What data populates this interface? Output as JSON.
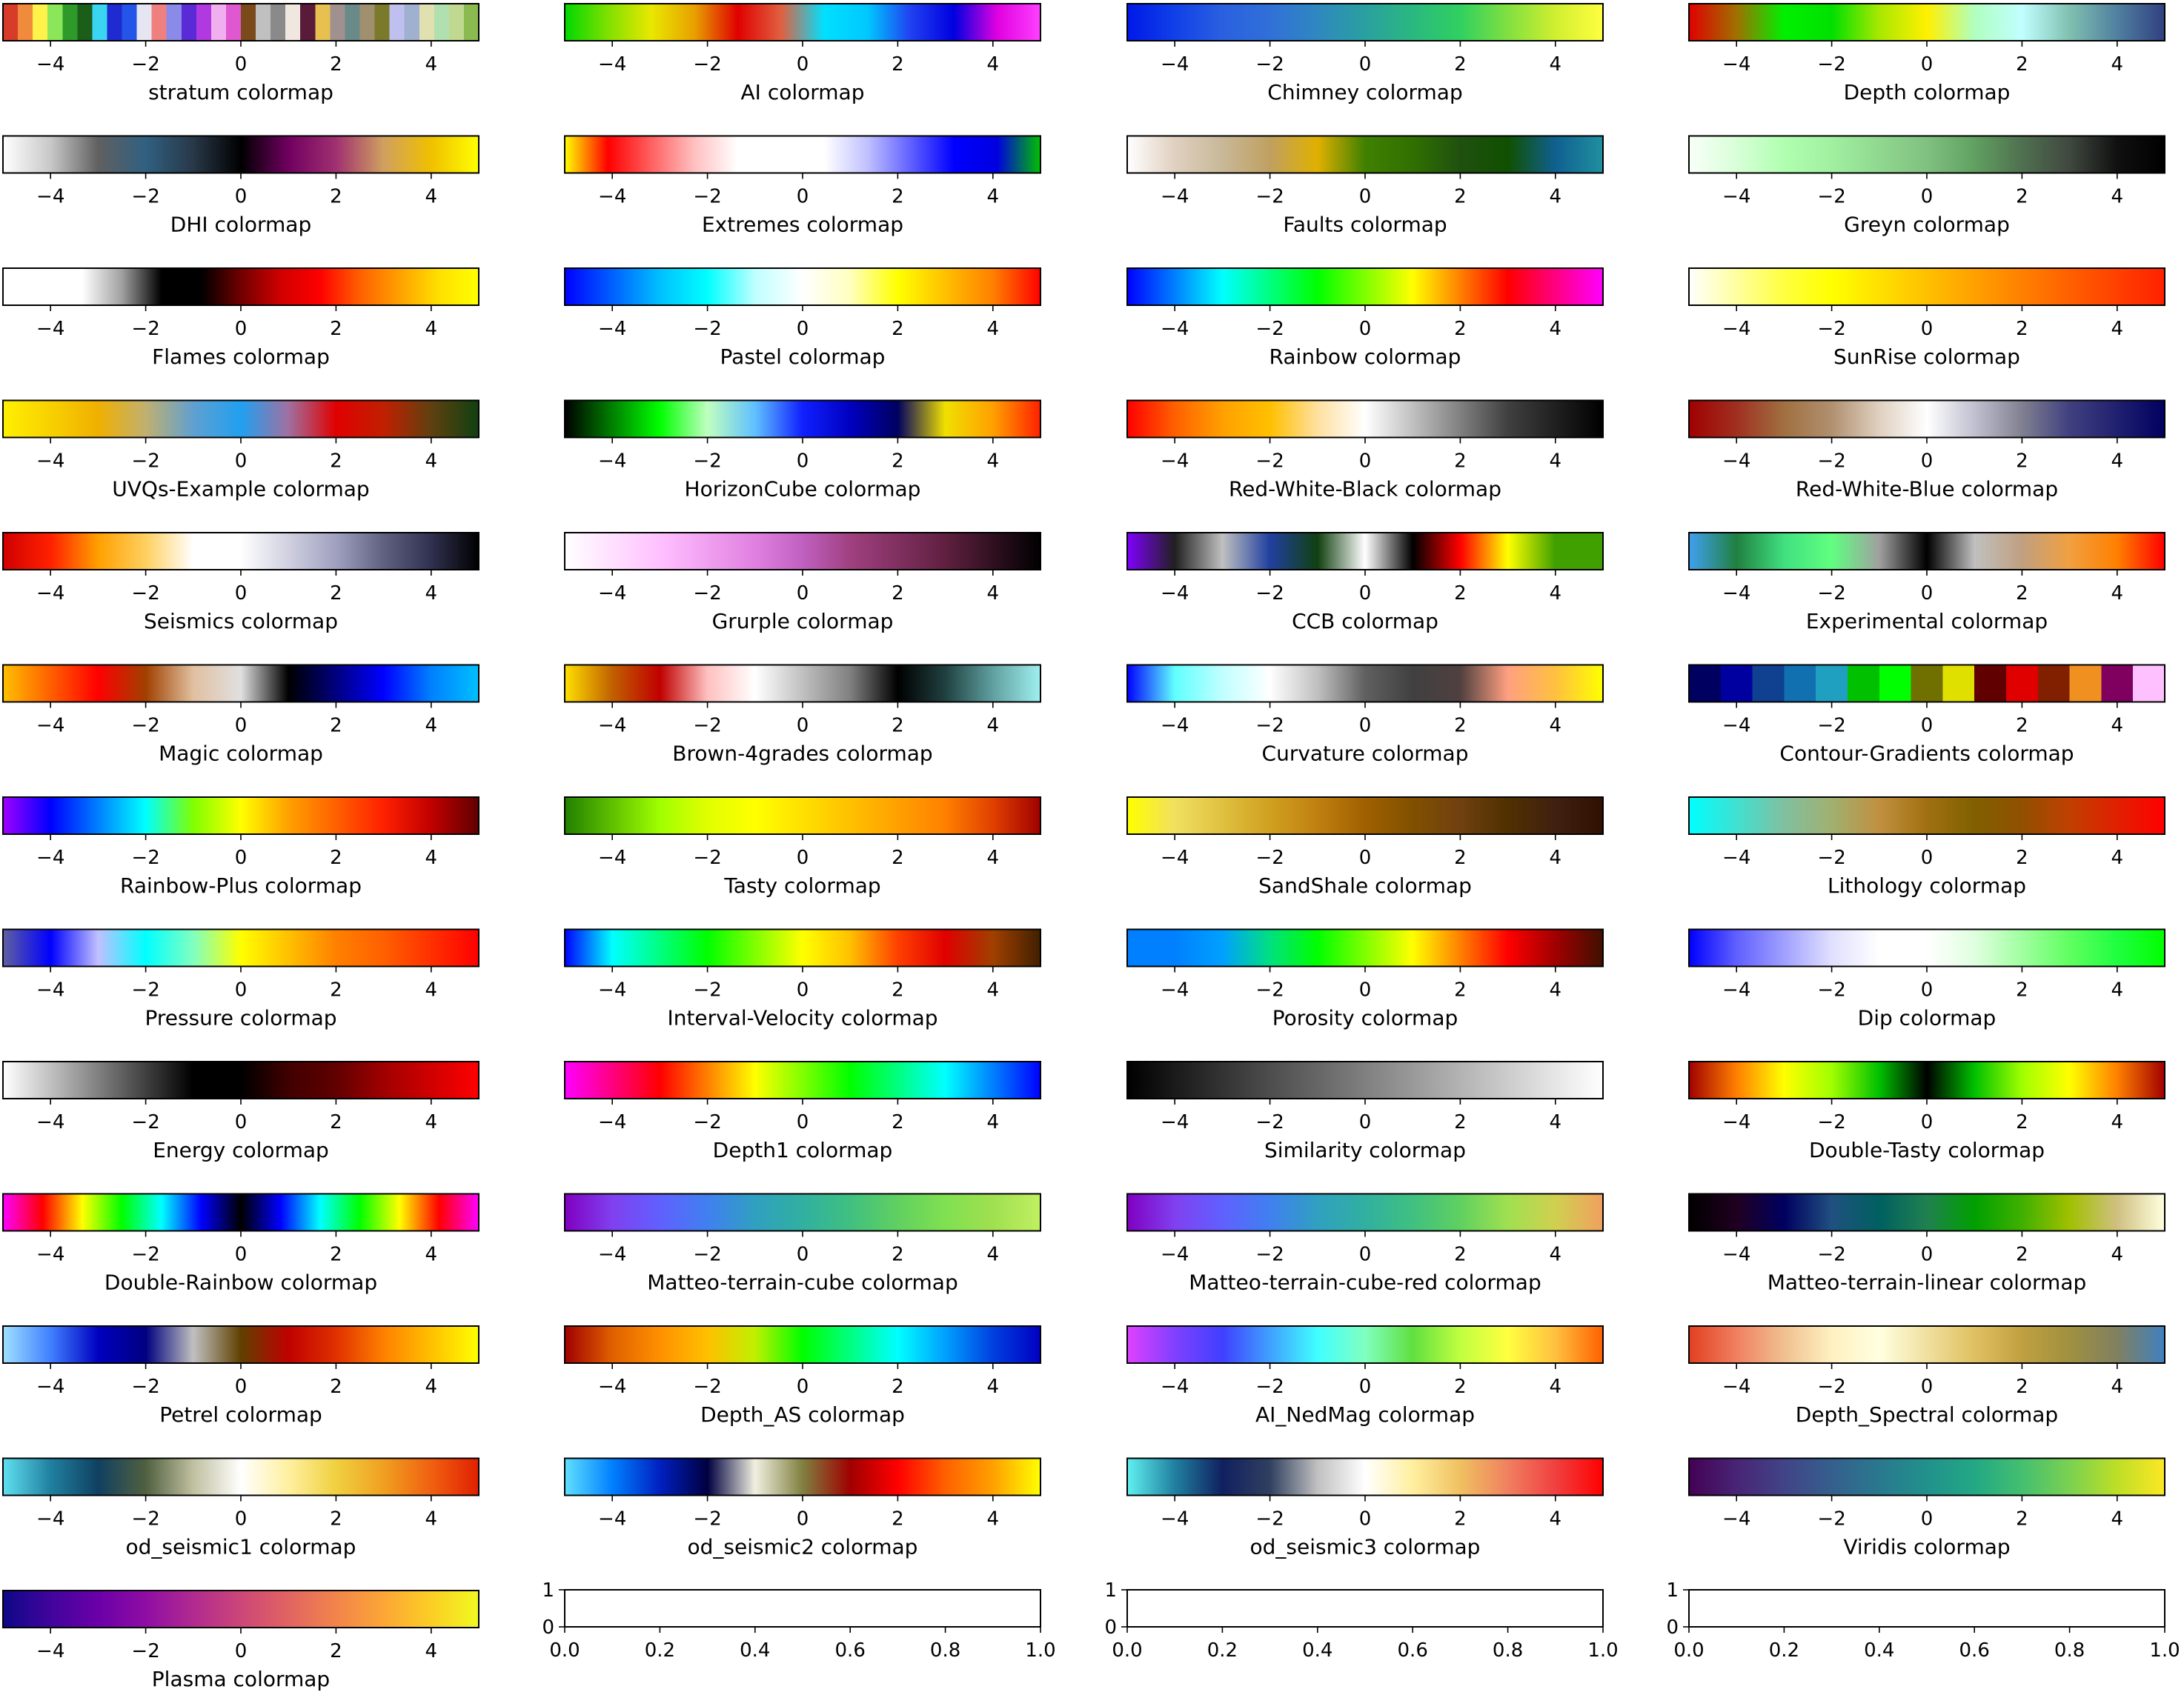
{
  "figure": {
    "tick_values": [
      -4,
      -2,
      0,
      2,
      4
    ],
    "empty_x_ticks": [
      "0.0",
      "0.2",
      "0.4",
      "0.6",
      "0.8",
      "1.0"
    ],
    "empty_y_ticks": [
      "0",
      "1"
    ]
  },
  "chart_data": [
    {
      "type": "heatmap",
      "title": "stratum colormap",
      "xlim": [
        -5,
        5
      ],
      "discrete": true,
      "colors": [
        "#d73b2a",
        "#f08a3c",
        "#fff24a",
        "#8ce65a",
        "#2d9a2a",
        "#1d5d1a",
        "#3ad5f0",
        "#1f2bd0",
        "#2454e8",
        "#e6e6f2",
        "#f08080",
        "#8a8ae8",
        "#5a2ad6",
        "#b03ae0",
        "#f0b0f0",
        "#e058d0",
        "#7a4a1a",
        "#c0c0c0",
        "#8a8a8a",
        "#f0e8e0",
        "#5a1a3a",
        "#e8c050",
        "#a09090",
        "#6a8a8a",
        "#a09070",
        "#7a7a2a",
        "#c0c0f0",
        "#a0b0d0",
        "#e0e0b0",
        "#b0e0b0",
        "#c0d890",
        "#8aba50"
      ]
    },
    {
      "type": "heatmap",
      "title": "AI colormap",
      "xlim": [
        -5,
        5
      ],
      "colors": [
        "#00d800",
        "#80e000",
        "#e8e800",
        "#e8a000",
        "#e00000",
        "#e06040",
        "#00e0ff",
        "#00c8ff",
        "#2040f0",
        "#0000e0",
        "#e000e0",
        "#ff40ff"
      ]
    },
    {
      "type": "heatmap",
      "title": "Chimney colormap",
      "xlim": [
        -5,
        5
      ],
      "colors": [
        "#0018e8",
        "#1040e8",
        "#2a60e0",
        "#3070d8",
        "#2f88c0",
        "#2aa0a0",
        "#2ab880",
        "#30d060",
        "#80e040",
        "#d0ef30",
        "#ffff40"
      ]
    },
    {
      "type": "heatmap",
      "title": "Depth colormap",
      "xlim": [
        -5,
        5
      ],
      "colors": [
        "#e00000",
        "#a07000",
        "#00f000",
        "#00e000",
        "#a8e800",
        "#fff000",
        "#b0ffc0",
        "#c0ffff",
        "#80c0b0",
        "#5080a0",
        "#304080"
      ]
    },
    {
      "type": "heatmap",
      "title": "DHI colormap",
      "xlim": [
        -5,
        5
      ],
      "colors": [
        "#ffffff",
        "#c8c8c8",
        "#606060",
        "#306080",
        "#283848",
        "#000000",
        "#700060",
        "#a03070",
        "#d0a060",
        "#f0c000",
        "#ffff00"
      ]
    },
    {
      "type": "heatmap",
      "title": "Extremes colormap",
      "xlim": [
        -5,
        5
      ],
      "colors": [
        "#ffff00",
        "#ff0000",
        "#ff6060",
        "#ffc0c0",
        "#ffffff",
        "#ffffff",
        "#ffffff",
        "#c0c0ff",
        "#6060ff",
        "#0000ff",
        "#0000e0",
        "#00c000"
      ]
    },
    {
      "type": "heatmap",
      "title": "Faults colormap",
      "xlim": [
        -5,
        5
      ],
      "colors": [
        "#ffffff",
        "#e0d0c0",
        "#c8b898",
        "#c0a060",
        "#e0b000",
        "#408000",
        "#307000",
        "#205010",
        "#105000",
        "#106090",
        "#2090a0"
      ]
    },
    {
      "type": "heatmap",
      "title": "Greyn colormap",
      "xlim": [
        -5,
        5
      ],
      "colors": [
        "#f8fff8",
        "#d8ffd8",
        "#b0ffb0",
        "#a0f0a0",
        "#90d890",
        "#80c080",
        "#60a060",
        "#507050",
        "#404840",
        "#101010",
        "#000000"
      ]
    },
    {
      "type": "heatmap",
      "title": "Flames colormap",
      "xlim": [
        -5,
        5
      ],
      "colors": [
        "#ffffff",
        "#ffffff",
        "#ffffff",
        "#a0a0a0",
        "#000000",
        "#000000",
        "#700000",
        "#d00000",
        "#ff0000",
        "#ff6000",
        "#ffa000",
        "#ffe000",
        "#ffff00"
      ]
    },
    {
      "type": "heatmap",
      "title": "Pastel colormap",
      "xlim": [
        -5,
        5
      ],
      "colors": [
        "#0000ff",
        "#0060ff",
        "#00c0ff",
        "#00ffff",
        "#c0ffff",
        "#ffffff",
        "#ffffc0",
        "#ffff00",
        "#ffc000",
        "#ff8000",
        "#ff0000"
      ]
    },
    {
      "type": "heatmap",
      "title": "Rainbow colormap",
      "xlim": [
        -5,
        5
      ],
      "colors": [
        "#0000ff",
        "#0080ff",
        "#00ffff",
        "#00ff80",
        "#00ff00",
        "#80ff00",
        "#ffff00",
        "#ff8000",
        "#ff0000",
        "#ff0080",
        "#ff00ff"
      ]
    },
    {
      "type": "heatmap",
      "title": "SunRise colormap",
      "xlim": [
        -5,
        5
      ],
      "colors": [
        "#ffffff",
        "#ffffa0",
        "#ffff40",
        "#ffff00",
        "#ffe000",
        "#ffc000",
        "#ffa000",
        "#ff8000",
        "#ff6000",
        "#ff4000",
        "#ff2000"
      ]
    },
    {
      "type": "heatmap",
      "title": "UVQs-Example colormap",
      "xlim": [
        -5,
        5
      ],
      "colors": [
        "#fff000",
        "#f8d000",
        "#f0b000",
        "#c0b070",
        "#60a0d0",
        "#20a0f0",
        "#a070a0",
        "#e00000",
        "#c02000",
        "#604010",
        "#104010"
      ]
    },
    {
      "type": "heatmap",
      "title": "HorizonCube colormap",
      "xlim": [
        -5,
        5
      ],
      "colors": [
        "#000000",
        "#008000",
        "#00ff00",
        "#c0ffc0",
        "#60c0ff",
        "#1020ff",
        "#0000c0",
        "#000060",
        "#f0e000",
        "#ffa000",
        "#ff2000"
      ]
    },
    {
      "type": "heatmap",
      "title": "Red-White-Black colormap",
      "xlim": [
        -5,
        5
      ],
      "colors": [
        "#ff0000",
        "#ff6000",
        "#ffa000",
        "#ffc000",
        "#ffe0a0",
        "#ffffff",
        "#c0c0c0",
        "#808080",
        "#404040",
        "#202020",
        "#000000"
      ]
    },
    {
      "type": "heatmap",
      "title": "Red-White-Blue colormap",
      "xlim": [
        -5,
        5
      ],
      "colors": [
        "#a00000",
        "#a03020",
        "#a07040",
        "#b09070",
        "#e0d0c0",
        "#ffffff",
        "#c0c0d0",
        "#808090",
        "#404080",
        "#202070",
        "#000060"
      ]
    },
    {
      "type": "heatmap",
      "title": "Seismics colormap",
      "xlim": [
        -5,
        5
      ],
      "colors": [
        "#d00000",
        "#ff2000",
        "#ffa000",
        "#ffd060",
        "#ffffff",
        "#ffffff",
        "#d0d0e0",
        "#a0a0c0",
        "#606080",
        "#303050",
        "#000000"
      ]
    },
    {
      "type": "heatmap",
      "title": "Grurple colormap",
      "xlim": [
        -5,
        5
      ],
      "colors": [
        "#ffffff",
        "#ffe0ff",
        "#ffc0ff",
        "#f0a0f0",
        "#e080e0",
        "#c060c0",
        "#a04080",
        "#803060",
        "#602040",
        "#301020",
        "#000000"
      ]
    },
    {
      "type": "heatmap",
      "title": "CCB colormap",
      "xlim": [
        -5,
        5
      ],
      "colors": [
        "#8000ff",
        "#202020",
        "#c0c0c0",
        "#2040a0",
        "#104010",
        "#ffffff",
        "#000000",
        "#ff0000",
        "#ffff00",
        "#40a000",
        "#40a000"
      ]
    },
    {
      "type": "heatmap",
      "title": "Experimental colormap",
      "xlim": [
        -5,
        5
      ],
      "colors": [
        "#40a0f0",
        "#208040",
        "#40e080",
        "#60ff80",
        "#a0a0a0",
        "#000000",
        "#c0c0c0",
        "#c0a080",
        "#f0a040",
        "#ff8000",
        "#ff0000"
      ]
    },
    {
      "type": "heatmap",
      "title": "Magic colormap",
      "xlim": [
        -5,
        5
      ],
      "colors": [
        "#ffc000",
        "#ff6000",
        "#ff0000",
        "#a04000",
        "#e0c0a0",
        "#e0e0e0",
        "#000000",
        "#000080",
        "#0000ff",
        "#0080ff",
        "#00c0ff"
      ]
    },
    {
      "type": "heatmap",
      "title": "Brown-4grades colormap",
      "xlim": [
        -5,
        5
      ],
      "colors": [
        "#ffe000",
        "#c06000",
        "#c00000",
        "#ffc0c0",
        "#ffffff",
        "#c0c0c0",
        "#808080",
        "#000000",
        "#204040",
        "#60a0a0",
        "#a0f0f0"
      ]
    },
    {
      "type": "heatmap",
      "title": "Curvature colormap",
      "xlim": [
        -5,
        5
      ],
      "colors": [
        "#0000ff",
        "#60ffff",
        "#c0ffff",
        "#ffffff",
        "#c0c0c0",
        "#606060",
        "#404040",
        "#504040",
        "#ffa080",
        "#ffc040",
        "#ffff00"
      ]
    },
    {
      "type": "heatmap",
      "title": "Contour-Gradients colormap",
      "xlim": [
        -5,
        5
      ],
      "discrete": true,
      "colors": [
        "#000060",
        "#0000a0",
        "#104090",
        "#1070b0",
        "#20a0c0",
        "#00c000",
        "#00ff00",
        "#707000",
        "#e0e000",
        "#600000",
        "#e00000",
        "#802000",
        "#f09020",
        "#800060",
        "#ffc0ff"
      ]
    },
    {
      "type": "heatmap",
      "title": "Rainbow-Plus colormap",
      "xlim": [
        -5,
        5
      ],
      "colors": [
        "#a000ff",
        "#0000ff",
        "#0080ff",
        "#00ffff",
        "#80ff00",
        "#ffff00",
        "#ffa000",
        "#ff6000",
        "#ff2000",
        "#c00000",
        "#600000"
      ]
    },
    {
      "type": "heatmap",
      "title": "Tasty colormap",
      "xlim": [
        -5,
        5
      ],
      "colors": [
        "#208000",
        "#60c000",
        "#a0ff00",
        "#e0ff00",
        "#ffff00",
        "#ffe000",
        "#ffc000",
        "#ffa000",
        "#ff8000",
        "#e04000",
        "#a00000"
      ]
    },
    {
      "type": "heatmap",
      "title": "SandShale colormap",
      "xlim": [
        -5,
        5
      ],
      "colors": [
        "#ffff00",
        "#f0e060",
        "#e0c040",
        "#d0a020",
        "#c08010",
        "#a06000",
        "#805000",
        "#704010",
        "#503000",
        "#402010",
        "#301000"
      ]
    },
    {
      "type": "heatmap",
      "title": "Lithology colormap",
      "xlim": [
        -5,
        5
      ],
      "colors": [
        "#00ffff",
        "#40e0d0",
        "#80c0a0",
        "#a0b070",
        "#c09040",
        "#a07010",
        "#806000",
        "#905000",
        "#c04000",
        "#e02000",
        "#ff0000"
      ]
    },
    {
      "type": "heatmap",
      "title": "Pressure colormap",
      "xlim": [
        -5,
        5
      ],
      "colors": [
        "#6060a0",
        "#0000ff",
        "#c0c0ff",
        "#00ffff",
        "#80ffc0",
        "#ffff00",
        "#ffc000",
        "#ff8000",
        "#ff6000",
        "#ff3000",
        "#ff0000"
      ]
    },
    {
      "type": "heatmap",
      "title": "Interval-Velocity colormap",
      "xlim": [
        -5,
        5
      ],
      "colors": [
        "#0000ff",
        "#00ffff",
        "#00ff80",
        "#00ff00",
        "#80ff00",
        "#ffff00",
        "#ffc000",
        "#ff4000",
        "#e00000",
        "#a04000",
        "#402000"
      ]
    },
    {
      "type": "heatmap",
      "title": "Porosity colormap",
      "xlim": [
        -5,
        5
      ],
      "colors": [
        "#0080ff",
        "#0080ff",
        "#00a0ff",
        "#00e080",
        "#00ff00",
        "#80ff00",
        "#ffff00",
        "#ff8000",
        "#ff0000",
        "#a00000",
        "#401000"
      ]
    },
    {
      "type": "heatmap",
      "title": "Dip colormap",
      "xlim": [
        -5,
        5
      ],
      "colors": [
        "#0000ff",
        "#6060ff",
        "#a0a0ff",
        "#e0e0ff",
        "#ffffff",
        "#ffffff",
        "#e0ffe0",
        "#a0ffa0",
        "#60ff60",
        "#20ff40",
        "#00ff00"
      ]
    },
    {
      "type": "heatmap",
      "title": "Energy colormap",
      "xlim": [
        -5,
        5
      ],
      "colors": [
        "#ffffff",
        "#c0c0c0",
        "#808080",
        "#404040",
        "#000000",
        "#000000",
        "#400000",
        "#600000",
        "#a00000",
        "#d00000",
        "#ff0000"
      ]
    },
    {
      "type": "heatmap",
      "title": "Depth1 colormap",
      "xlim": [
        -5,
        5
      ],
      "colors": [
        "#ff00ff",
        "#ff0080",
        "#ff0000",
        "#ff8000",
        "#ffff00",
        "#80ff00",
        "#00ff00",
        "#00ff80",
        "#00ffff",
        "#0080ff",
        "#0000ff"
      ]
    },
    {
      "type": "heatmap",
      "title": "Similarity colormap",
      "xlim": [
        -5,
        5
      ],
      "colors": [
        "#000000",
        "#1a1a1a",
        "#333333",
        "#4d4d4d",
        "#666666",
        "#808080",
        "#999999",
        "#b3b3b3",
        "#cccccc",
        "#e6e6e6",
        "#ffffff"
      ]
    },
    {
      "type": "heatmap",
      "title": "Double-Tasty colormap",
      "xlim": [
        -5,
        5
      ],
      "colors": [
        "#a00000",
        "#ff8000",
        "#ffff00",
        "#a0ff00",
        "#00c000",
        "#000000",
        "#00c000",
        "#a0ff00",
        "#ffff00",
        "#ff8000",
        "#a00000"
      ]
    },
    {
      "type": "heatmap",
      "title": "Double-Rainbow colormap",
      "xlim": [
        -5,
        5
      ],
      "colors": [
        "#ff00ff",
        "#ff0000",
        "#ffff00",
        "#00ff00",
        "#00ffff",
        "#0000ff",
        "#000000",
        "#0000ff",
        "#00ffff",
        "#00ff00",
        "#ffff00",
        "#ff0000",
        "#ff00ff"
      ]
    },
    {
      "type": "heatmap",
      "title": "Matteo-terrain-cube colormap",
      "xlim": [
        -5,
        5
      ],
      "colors": [
        "#8000c0",
        "#8040f0",
        "#6060ff",
        "#4080f0",
        "#30a0c0",
        "#30b0a0",
        "#40c080",
        "#60d060",
        "#80e050",
        "#a0e050",
        "#c0f060"
      ]
    },
    {
      "type": "heatmap",
      "title": "Matteo-terrain-cube-red colormap",
      "xlim": [
        -5,
        5
      ],
      "colors": [
        "#8000c0",
        "#8040f0",
        "#6060ff",
        "#4080f0",
        "#30a0c0",
        "#30b0a0",
        "#40c080",
        "#60d060",
        "#a0e050",
        "#d0d050",
        "#f0a060"
      ]
    },
    {
      "type": "heatmap",
      "title": "Matteo-terrain-linear colormap",
      "xlim": [
        -5,
        5
      ],
      "colors": [
        "#000000",
        "#200020",
        "#000060",
        "#205080",
        "#006060",
        "#208050",
        "#00a000",
        "#40b000",
        "#a0c000",
        "#d0c080",
        "#ffffe0"
      ]
    },
    {
      "type": "heatmap",
      "title": "Petrel colormap",
      "xlim": [
        -5,
        5
      ],
      "colors": [
        "#a0e0ff",
        "#4080ff",
        "#0000c0",
        "#000080",
        "#c0c0c0",
        "#604000",
        "#c00000",
        "#e03000",
        "#ff8000",
        "#ffc000",
        "#ffff00"
      ]
    },
    {
      "type": "heatmap",
      "title": "Depth_AS colormap",
      "xlim": [
        -5,
        5
      ],
      "colors": [
        "#a00000",
        "#e06000",
        "#ff9000",
        "#ffc000",
        "#c0f000",
        "#00ff00",
        "#00ff80",
        "#00ffff",
        "#00a0ff",
        "#0040e0",
        "#0000c0"
      ]
    },
    {
      "type": "heatmap",
      "title": "AI_NedMag colormap",
      "xlim": [
        -5,
        5
      ],
      "colors": [
        "#e040ff",
        "#8040ff",
        "#4040ff",
        "#40a0ff",
        "#40ffff",
        "#80ffc0",
        "#60e040",
        "#c0ff40",
        "#ffff40",
        "#ffc040",
        "#ff6000"
      ]
    },
    {
      "type": "heatmap",
      "title": "Depth_Spectral colormap",
      "xlim": [
        -5,
        5
      ],
      "colors": [
        "#e04020",
        "#f08060",
        "#f0c090",
        "#fff0c0",
        "#ffffe0",
        "#f0e0a0",
        "#e0c060",
        "#c0a040",
        "#a09040",
        "#808060",
        "#4080c0"
      ]
    },
    {
      "type": "heatmap",
      "title": "od_seismic1 colormap",
      "xlim": [
        -5,
        5
      ],
      "colors": [
        "#60e0f0",
        "#2080a0",
        "#104060",
        "#506040",
        "#c0c0a0",
        "#ffffff",
        "#fff0a0",
        "#f0d040",
        "#f0a020",
        "#f06010",
        "#e02000"
      ]
    },
    {
      "type": "heatmap",
      "title": "od_seismic2 colormap",
      "xlim": [
        -5,
        5
      ],
      "colors": [
        "#60e0ff",
        "#0080ff",
        "#0020c0",
        "#000040",
        "#f0f0e0",
        "#808040",
        "#a00000",
        "#ff0000",
        "#ff6000",
        "#ffa000",
        "#ffff00"
      ]
    },
    {
      "type": "heatmap",
      "title": "od_seismic3 colormap",
      "xlim": [
        -5,
        5
      ],
      "colors": [
        "#60f0f0",
        "#2080a0",
        "#102060",
        "#304060",
        "#c0c0c0",
        "#ffffff",
        "#fff0a0",
        "#f0c060",
        "#f08060",
        "#f04040",
        "#ff0000"
      ]
    },
    {
      "type": "heatmap",
      "title": "Viridis colormap",
      "xlim": [
        -5,
        5
      ],
      "colors": [
        "#440154",
        "#482475",
        "#414487",
        "#355f8d",
        "#2a788e",
        "#21918c",
        "#22a884",
        "#44bf70",
        "#7ad151",
        "#bddf26",
        "#fde725"
      ]
    },
    {
      "type": "heatmap",
      "title": "Plasma colormap",
      "xlim": [
        -5,
        5
      ],
      "colors": [
        "#0d0887",
        "#41049d",
        "#6a00a8",
        "#8f0da4",
        "#b12a90",
        "#cc4778",
        "#e16462",
        "#f2844b",
        "#fca636",
        "#fcce25",
        "#f0f921"
      ]
    }
  ]
}
